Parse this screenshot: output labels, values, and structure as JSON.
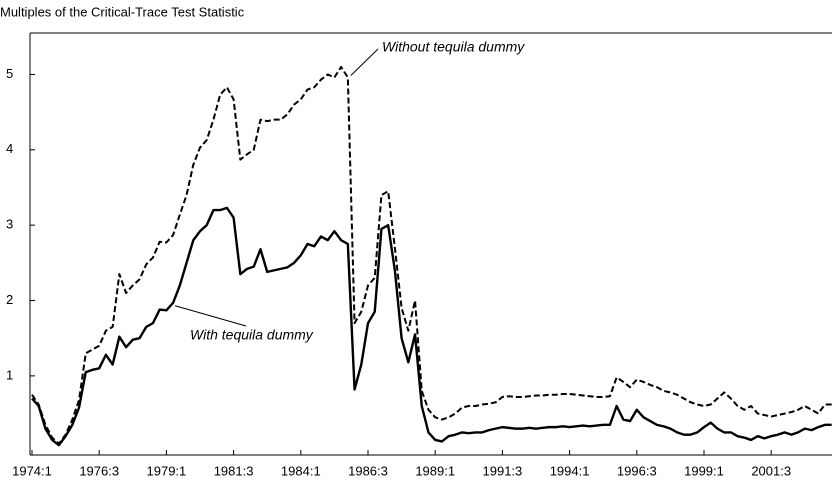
{
  "chart_data": {
    "type": "line",
    "title": "Multiples of the Critical-Trace Test Statistic",
    "categories": [
      "1974:1",
      null,
      null,
      null,
      null,
      null,
      null,
      null,
      null,
      null,
      "1976:3",
      null,
      null,
      null,
      null,
      null,
      null,
      null,
      null,
      null,
      "1979:1",
      null,
      null,
      null,
      null,
      null,
      null,
      null,
      null,
      null,
      "1981:3",
      null,
      null,
      null,
      null,
      null,
      null,
      null,
      null,
      null,
      "1984:1",
      null,
      null,
      null,
      null,
      null,
      null,
      null,
      null,
      null,
      "1986:3",
      null,
      null,
      null,
      null,
      null,
      null,
      null,
      null,
      null,
      "1989:1",
      null,
      null,
      null,
      null,
      null,
      null,
      null,
      null,
      null,
      "1991:3",
      null,
      null,
      null,
      null,
      null,
      null,
      null,
      null,
      null,
      "1994:1",
      null,
      null,
      null,
      null,
      null,
      null,
      null,
      null,
      null,
      "1996:3",
      null,
      null,
      null,
      null,
      null,
      null,
      null,
      null,
      null,
      "1999:1",
      null,
      null,
      null,
      null,
      null,
      null,
      null,
      null,
      null,
      "2001:3",
      null,
      null,
      null,
      null,
      null,
      null,
      null,
      null,
      null
    ],
    "series": [
      {
        "name": "Without tequila dummy",
        "color": "#000000",
        "dashed": true,
        "values": [
          0.75,
          0.62,
          0.35,
          0.18,
          0.1,
          0.22,
          0.42,
          0.68,
          1.3,
          1.35,
          1.4,
          1.6,
          1.65,
          2.35,
          2.1,
          2.2,
          2.28,
          2.48,
          2.57,
          2.78,
          2.77,
          2.87,
          3.14,
          3.4,
          3.8,
          4.03,
          4.13,
          4.4,
          4.73,
          4.83,
          4.67,
          3.87,
          3.94,
          4.0,
          4.4,
          4.38,
          4.4,
          4.4,
          4.47,
          4.6,
          4.67,
          4.8,
          4.83,
          4.93,
          5.0,
          4.96,
          5.1,
          4.96,
          1.7,
          1.85,
          2.2,
          2.3,
          3.4,
          3.45,
          2.7,
          1.9,
          1.6,
          2.0,
          0.8,
          0.55,
          0.45,
          0.42,
          0.45,
          0.5,
          0.58,
          0.6,
          0.6,
          0.62,
          0.63,
          0.65,
          0.72,
          0.73,
          0.72,
          0.72,
          0.73,
          0.74,
          0.74,
          0.75,
          0.75,
          0.76,
          0.76,
          0.75,
          0.74,
          0.73,
          0.72,
          0.72,
          0.73,
          0.98,
          0.92,
          0.85,
          0.95,
          0.92,
          0.88,
          0.85,
          0.8,
          0.78,
          0.75,
          0.7,
          0.65,
          0.62,
          0.6,
          0.62,
          0.7,
          0.78,
          0.7,
          0.6,
          0.55,
          0.6,
          0.5,
          0.48,
          0.46,
          0.48,
          0.5,
          0.52,
          0.55,
          0.6,
          0.55,
          0.5,
          0.62,
          0.62
        ]
      },
      {
        "name": "With tequila dummy",
        "color": "#000000",
        "dashed": false,
        "values": [
          0.7,
          0.6,
          0.3,
          0.15,
          0.08,
          0.2,
          0.35,
          0.58,
          1.05,
          1.08,
          1.1,
          1.28,
          1.15,
          1.52,
          1.38,
          1.48,
          1.5,
          1.65,
          1.7,
          1.88,
          1.87,
          1.97,
          2.2,
          2.5,
          2.8,
          2.92,
          3.0,
          3.2,
          3.2,
          3.23,
          3.1,
          2.35,
          2.42,
          2.45,
          2.68,
          2.38,
          2.4,
          2.42,
          2.44,
          2.5,
          2.6,
          2.75,
          2.72,
          2.85,
          2.8,
          2.92,
          2.8,
          2.75,
          0.82,
          1.15,
          1.7,
          1.85,
          2.95,
          3.0,
          2.4,
          1.5,
          1.18,
          1.55,
          0.6,
          0.25,
          0.15,
          0.13,
          0.2,
          0.22,
          0.25,
          0.24,
          0.25,
          0.25,
          0.28,
          0.3,
          0.32,
          0.31,
          0.3,
          0.3,
          0.31,
          0.3,
          0.31,
          0.32,
          0.32,
          0.33,
          0.32,
          0.33,
          0.34,
          0.33,
          0.34,
          0.35,
          0.35,
          0.6,
          0.42,
          0.4,
          0.55,
          0.45,
          0.4,
          0.35,
          0.33,
          0.3,
          0.25,
          0.22,
          0.22,
          0.25,
          0.32,
          0.38,
          0.3,
          0.25,
          0.25,
          0.2,
          0.18,
          0.15,
          0.2,
          0.17,
          0.2,
          0.22,
          0.25,
          0.22,
          0.25,
          0.3,
          0.28,
          0.32,
          0.35,
          0.35
        ]
      }
    ],
    "ylim": [
      -0.05,
      5.55
    ],
    "yticks": [
      1,
      2,
      3,
      4,
      5
    ],
    "grid": false
  }
}
